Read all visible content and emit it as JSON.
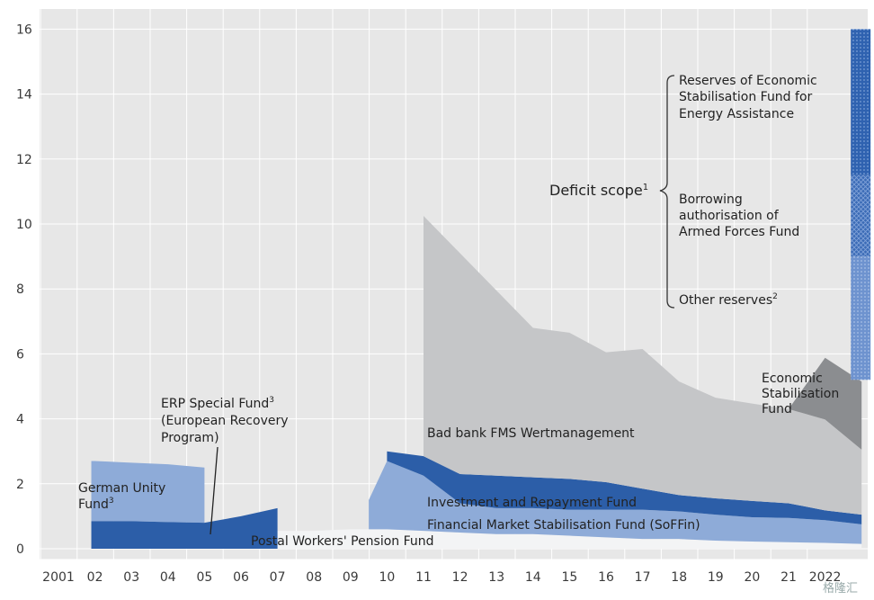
{
  "chart_data": {
    "type": "area",
    "xlabels": [
      "2001",
      "02",
      "03",
      "04",
      "05",
      "06",
      "07",
      "08",
      "09",
      "10",
      "11",
      "12",
      "13",
      "14",
      "15",
      "16",
      "17",
      "18",
      "19",
      "20",
      "21",
      "2022"
    ],
    "y_ticks": [
      0,
      2,
      4,
      6,
      8,
      10,
      12,
      14,
      16
    ],
    "ylim": [
      0,
      16
    ],
    "grid": true,
    "colors": {
      "background": "#e7e7e7",
      "grid": "#ffffff",
      "light_blue": "#8eabd8",
      "dark_blue": "#2c5ea8",
      "mid_blue": "#4d7cc0",
      "light_gray": "#c5c6c8",
      "dark_gray": "#8b8d90",
      "pale": "#f3f4f5"
    },
    "series": [
      {
        "name": "Postal Workers' Pension Fund",
        "x": [
          5,
          6,
          7,
          8,
          9,
          10,
          11,
          12,
          13,
          14,
          15,
          16,
          17,
          18,
          19,
          20,
          21,
          22
        ],
        "values": [
          0.3,
          0.55,
          0.55,
          0.6,
          0.6,
          0.55,
          0.5,
          0.45,
          0.45,
          0.4,
          0.35,
          0.3,
          0.3,
          0.25,
          0.22,
          0.2,
          0.18,
          0.15
        ]
      },
      {
        "name": "Financial Market Stabilisation Fund (SoFFin)",
        "x": [
          8.5,
          9,
          10,
          11,
          12,
          13,
          14,
          15,
          16,
          17,
          18,
          19,
          20,
          21,
          22
        ],
        "values": [
          0.9,
          2.1,
          1.7,
          0.9,
          0.8,
          0.8,
          0.8,
          0.85,
          0.9,
          0.85,
          0.8,
          0.75,
          0.75,
          0.7,
          0.6
        ]
      },
      {
        "name": "Investment and Repayment Fund",
        "x": [
          9,
          10,
          11,
          12,
          13,
          14,
          15,
          16,
          17,
          18,
          19,
          20,
          21,
          22
        ],
        "values": [
          0.3,
          0.6,
          0.9,
          1.0,
          0.95,
          0.95,
          0.85,
          0.65,
          0.5,
          0.5,
          0.5,
          0.45,
          0.3,
          0.3
        ]
      },
      {
        "name": "Bad bank FMS Wertmanagement",
        "x": [
          10,
          11,
          12,
          13,
          14,
          15,
          16,
          17,
          18,
          19,
          20,
          21,
          22
        ],
        "values": [
          7.4,
          6.8,
          5.7,
          4.6,
          4.5,
          4.0,
          4.3,
          3.5,
          3.1,
          3.0,
          2.9,
          2.8,
          2.0
        ]
      },
      {
        "name": "Economic Stabilisation Fund",
        "x": [
          20,
          21,
          22
        ],
        "values": [
          0.0,
          1.9,
          2.1
        ]
      },
      {
        "name": "German Unity Fund",
        "x": [
          0.9,
          1,
          2,
          3,
          4
        ],
        "values": [
          2.7,
          2.7,
          2.65,
          2.6,
          2.5
        ]
      },
      {
        "name": "ERP Special Fund",
        "x": [
          0.9,
          1,
          2,
          3,
          4,
          5,
          6
        ],
        "values": [
          0.85,
          0.85,
          0.85,
          0.82,
          0.8,
          1.0,
          1.25
        ]
      }
    ],
    "deficit_scope_bar": {
      "x": 22,
      "segments": [
        {
          "name": "Reserves of Economic Stabilisation Fund for Energy Assistance",
          "from": 11.5,
          "to": 16.0
        },
        {
          "name": "Borrowing authorisation of Armed Forces Fund",
          "from": 9.0,
          "to": 11.5
        },
        {
          "name": "Other reserves",
          "from": 5.2,
          "to": 9.0
        }
      ]
    },
    "annotations": {
      "deficit_scope": "Deficit scope",
      "deficit_sup": "1",
      "reserves_esf": [
        "Reserves of Economic",
        "Stabilisation Fund for",
        "Energy Assistance"
      ],
      "armed_forces": [
        "Borrowing",
        "authorisation of",
        "Armed Forces Fund"
      ],
      "other_reserves": "Other reserves",
      "other_sup": "2",
      "esf": [
        "Economic",
        "Stabilisation",
        "Fund"
      ],
      "bad_bank": "Bad bank FMS Wertmanagement",
      "investment": "Investment and Repayment Fund",
      "soffin": "Financial Market Stabilisation Fund (SoFFin)",
      "postal": "Postal Workers' Pension Fund",
      "german_unity": [
        "German Unity",
        "Fund"
      ],
      "german_sup": "3",
      "erp": [
        "ERP Special Fund",
        "(European Recovery",
        "Program)"
      ],
      "erp_sup": "3"
    }
  },
  "watermark": "格隆汇"
}
